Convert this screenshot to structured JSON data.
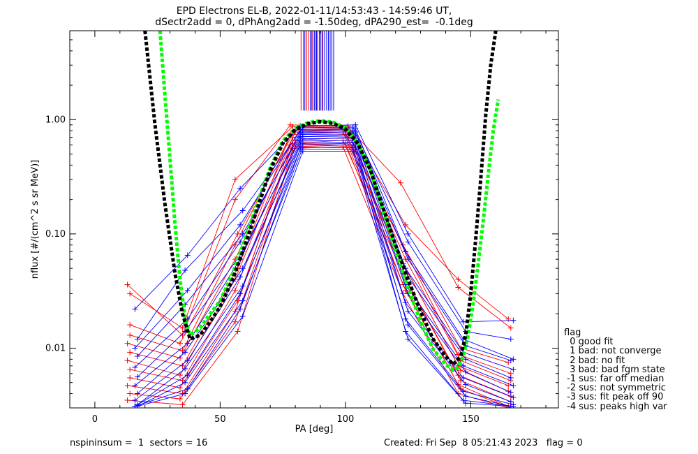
{
  "chart_data": {
    "type": "line",
    "title": "EPD Electrons EL-B, 2022-01-11/14:53:43 - 14:59:46 UT,",
    "subtitle": "dSectr2add = 0, dPhAng2add = -1.50deg, dPA290_est=  -0.1deg",
    "xlabel": "PA [deg]",
    "ylabel": "nflux [#/(cm^2 s sr MeV)]",
    "xlim": [
      -10,
      185
    ],
    "ylim": [
      0.003,
      6.0
    ],
    "yscale": "log",
    "x_ticks": [
      0,
      50,
      100,
      150
    ],
    "x_tick_labels": [
      "0",
      "50",
      "100",
      "150"
    ],
    "y_ticks": [
      0.01,
      0.1,
      1.0
    ],
    "y_tick_labels": [
      "0.01",
      "0.10",
      "1.00"
    ],
    "colors": {
      "red": "#ff0000",
      "blue": "#0000ff",
      "black": "#000000",
      "green": "#00ff00"
    },
    "fit_black": {
      "color": "#000000",
      "x": [
        20,
        24,
        28,
        32,
        35,
        38,
        42,
        46,
        50,
        55,
        60,
        65,
        70,
        75,
        80,
        85,
        90,
        95,
        100,
        105,
        110,
        115,
        120,
        125,
        130,
        135,
        140,
        143,
        146,
        148,
        150,
        152,
        154,
        156,
        158,
        160
      ],
      "y": [
        6.0,
        0.9,
        0.18,
        0.045,
        0.02,
        0.012,
        0.013,
        0.017,
        0.023,
        0.04,
        0.08,
        0.17,
        0.36,
        0.62,
        0.82,
        0.92,
        0.96,
        0.93,
        0.83,
        0.62,
        0.36,
        0.17,
        0.08,
        0.04,
        0.021,
        0.012,
        0.0085,
        0.0072,
        0.0085,
        0.013,
        0.03,
        0.09,
        0.3,
        1.1,
        3.0,
        6.0
      ]
    },
    "fit_green": {
      "color": "#00ff00",
      "x": [
        26,
        28,
        30,
        32,
        34,
        36,
        38,
        42,
        46,
        50,
        55,
        60,
        65,
        70,
        75,
        80,
        85,
        90,
        95,
        100,
        105,
        110,
        115,
        120,
        125,
        130,
        135,
        140,
        143,
        145,
        147,
        149,
        151,
        153,
        155,
        157,
        159,
        161
      ],
      "y": [
        6.0,
        1.6,
        0.45,
        0.12,
        0.04,
        0.018,
        0.013,
        0.015,
        0.02,
        0.026,
        0.045,
        0.09,
        0.19,
        0.38,
        0.65,
        0.84,
        0.94,
        0.98,
        0.95,
        0.85,
        0.62,
        0.36,
        0.16,
        0.072,
        0.034,
        0.017,
        0.0098,
        0.0072,
        0.0064,
        0.0068,
        0.0085,
        0.013,
        0.025,
        0.055,
        0.13,
        0.33,
        0.8,
        1.5
      ]
    },
    "tick_lines": {
      "x_range": [
        82,
        96
      ],
      "y_range": [
        1.2,
        6.0
      ],
      "red_x": [
        82.3,
        83.2,
        84.5,
        85.4,
        87.0,
        88.2,
        88.9,
        90.8
      ],
      "blue_x": [
        83.8,
        86.0,
        86.6,
        87.6,
        88.5,
        89.6,
        90.2,
        91.0,
        91.7,
        92.5,
        93.2,
        93.9,
        94.6,
        95.3
      ]
    },
    "series": [
      {
        "color": "#ff0000",
        "x": [
          13,
          35,
          56,
          78,
          101,
          124,
          145,
          165
        ],
        "y": [
          0.036,
          0.013,
          0.2,
          0.9,
          0.88,
          0.12,
          0.04,
          0.018
        ]
      },
      {
        "color": "#ff0000",
        "x": [
          14,
          35,
          56,
          79,
          101,
          122,
          145,
          166
        ],
        "y": [
          0.03,
          0.015,
          0.3,
          0.87,
          0.86,
          0.28,
          0.034,
          0.015
        ]
      },
      {
        "color": "#ff0000",
        "x": [
          14,
          34,
          57,
          80,
          99,
          123,
          146,
          165
        ],
        "y": [
          0.016,
          0.011,
          0.1,
          0.82,
          0.84,
          0.08,
          0.01,
          0.0075
        ]
      },
      {
        "color": "#ff0000",
        "x": [
          14,
          35,
          56,
          79,
          100,
          124,
          145,
          166
        ],
        "y": [
          0.013,
          0.0095,
          0.08,
          0.8,
          0.82,
          0.07,
          0.0088,
          0.006
        ]
      },
      {
        "color": "#ff0000",
        "x": [
          13,
          34,
          56,
          80,
          101,
          124,
          146,
          166
        ],
        "y": [
          0.011,
          0.0082,
          0.06,
          0.78,
          0.8,
          0.06,
          0.0078,
          0.0052
        ]
      },
      {
        "color": "#ff0000",
        "x": [
          14,
          35,
          57,
          78,
          99,
          123,
          145,
          165
        ],
        "y": [
          0.0092,
          0.007,
          0.05,
          0.74,
          0.78,
          0.055,
          0.007,
          0.0047
        ]
      },
      {
        "color": "#ff0000",
        "x": [
          13,
          34,
          56,
          79,
          100,
          124,
          146,
          165
        ],
        "y": [
          0.0078,
          0.0058,
          0.04,
          0.7,
          0.74,
          0.05,
          0.0064,
          0.0042
        ]
      },
      {
        "color": "#ff0000",
        "x": [
          14,
          35,
          56,
          80,
          101,
          123,
          145,
          166
        ],
        "y": [
          0.0065,
          0.0052,
          0.032,
          0.66,
          0.7,
          0.045,
          0.0058,
          0.0038
        ]
      },
      {
        "color": "#ff0000",
        "x": [
          14,
          34,
          57,
          79,
          99,
          124,
          146,
          166
        ],
        "y": [
          0.0055,
          0.0045,
          0.026,
          0.62,
          0.66,
          0.04,
          0.0052,
          0.0034
        ]
      },
      {
        "color": "#ff0000",
        "x": [
          13,
          35,
          56,
          78,
          100,
          123,
          145,
          165
        ],
        "y": [
          0.0047,
          0.004,
          0.021,
          0.6,
          0.62,
          0.036,
          0.0048,
          0.0031
        ]
      },
      {
        "color": "#ff0000",
        "x": [
          14,
          34,
          56,
          80,
          101,
          124,
          146,
          166
        ],
        "y": [
          0.004,
          0.0036,
          0.017,
          0.58,
          0.6,
          0.032,
          0.0044,
          0.003
        ]
      },
      {
        "color": "#ff0000",
        "x": [
          13,
          35,
          57,
          79,
          99,
          123,
          145,
          165
        ],
        "y": [
          0.0035,
          0.0032,
          0.014,
          0.56,
          0.58,
          0.03,
          0.004,
          0.003
        ]
      },
      {
        "color": "#0000ff",
        "x": [
          16,
          37,
          58,
          82,
          104,
          125,
          147,
          167
        ],
        "y": [
          0.022,
          0.065,
          0.25,
          0.88,
          0.9,
          0.1,
          0.017,
          0.0175
        ]
      },
      {
        "color": "#0000ff",
        "x": [
          17,
          36,
          59,
          83,
          103,
          125,
          148,
          166
        ],
        "y": [
          0.012,
          0.048,
          0.16,
          0.85,
          0.86,
          0.085,
          0.014,
          0.012
        ]
      },
      {
        "color": "#0000ff",
        "x": [
          16,
          37,
          58,
          82,
          104,
          124,
          147,
          167
        ],
        "y": [
          0.01,
          0.032,
          0.12,
          0.82,
          0.83,
          0.07,
          0.012,
          0.008
        ]
      },
      {
        "color": "#0000ff",
        "x": [
          17,
          36,
          59,
          83,
          103,
          125,
          148,
          166
        ],
        "y": [
          0.0085,
          0.024,
          0.1,
          0.8,
          0.8,
          0.06,
          0.0105,
          0.0078
        ]
      },
      {
        "color": "#0000ff",
        "x": [
          16,
          37,
          58,
          82,
          104,
          124,
          147,
          167
        ],
        "y": [
          0.0068,
          0.018,
          0.085,
          0.77,
          0.78,
          0.05,
          0.0092,
          0.0065
        ]
      },
      {
        "color": "#0000ff",
        "x": [
          17,
          36,
          59,
          83,
          103,
          125,
          148,
          166
        ],
        "y": [
          0.0056,
          0.014,
          0.07,
          0.74,
          0.75,
          0.042,
          0.008,
          0.0055
        ]
      },
      {
        "color": "#0000ff",
        "x": [
          16,
          37,
          58,
          82,
          104,
          124,
          147,
          167
        ],
        "y": [
          0.0047,
          0.011,
          0.06,
          0.71,
          0.72,
          0.036,
          0.007,
          0.0047
        ]
      },
      {
        "color": "#0000ff",
        "x": [
          17,
          36,
          59,
          83,
          103,
          125,
          148,
          166
        ],
        "y": [
          0.004,
          0.0092,
          0.05,
          0.68,
          0.69,
          0.03,
          0.0062,
          0.0041
        ]
      },
      {
        "color": "#0000ff",
        "x": [
          16,
          37,
          58,
          82,
          104,
          124,
          147,
          167
        ],
        "y": [
          0.0035,
          0.0078,
          0.042,
          0.65,
          0.66,
          0.025,
          0.0055,
          0.0037
        ]
      },
      {
        "color": "#0000ff",
        "x": [
          17,
          36,
          59,
          83,
          103,
          125,
          148,
          166
        ],
        "y": [
          0.0032,
          0.0066,
          0.035,
          0.62,
          0.63,
          0.021,
          0.0048,
          0.0034
        ]
      },
      {
        "color": "#0000ff",
        "x": [
          16,
          37,
          58,
          82,
          104,
          124,
          147,
          167
        ],
        "y": [
          0.0031,
          0.0058,
          0.03,
          0.6,
          0.6,
          0.018,
          0.0042,
          0.0032
        ]
      },
      {
        "color": "#0000ff",
        "x": [
          17,
          36,
          59,
          83,
          103,
          125,
          148,
          166
        ],
        "y": [
          0.0031,
          0.005,
          0.026,
          0.57,
          0.57,
          0.016,
          0.0038,
          0.0031
        ]
      },
      {
        "color": "#0000ff",
        "x": [
          16,
          37,
          58,
          82,
          104,
          124,
          147,
          167
        ],
        "y": [
          0.0031,
          0.0044,
          0.022,
          0.55,
          0.55,
          0.014,
          0.0035,
          0.0031
        ]
      },
      {
        "color": "#0000ff",
        "x": [
          17,
          36,
          59,
          83,
          103,
          125,
          148,
          166
        ],
        "y": [
          0.0031,
          0.004,
          0.019,
          0.53,
          0.53,
          0.012,
          0.0033,
          0.0031
        ]
      }
    ]
  },
  "flag_legend": {
    "lines": [
      "flag",
      "  0 good fit",
      "  1 bad: not converge",
      "  2 bad: no fit",
      "  3 bad: bad fgm state",
      " -1 sus: far off median",
      " -2 sus: not symmetric",
      " -3 sus: fit peak off 90",
      " -4 sus: peaks high var"
    ]
  },
  "footer": {
    "left": "nspininsum =  1  sectors = 16",
    "right": "Created: Fri Sep  8 05:21:43 2023   flag = 0"
  }
}
